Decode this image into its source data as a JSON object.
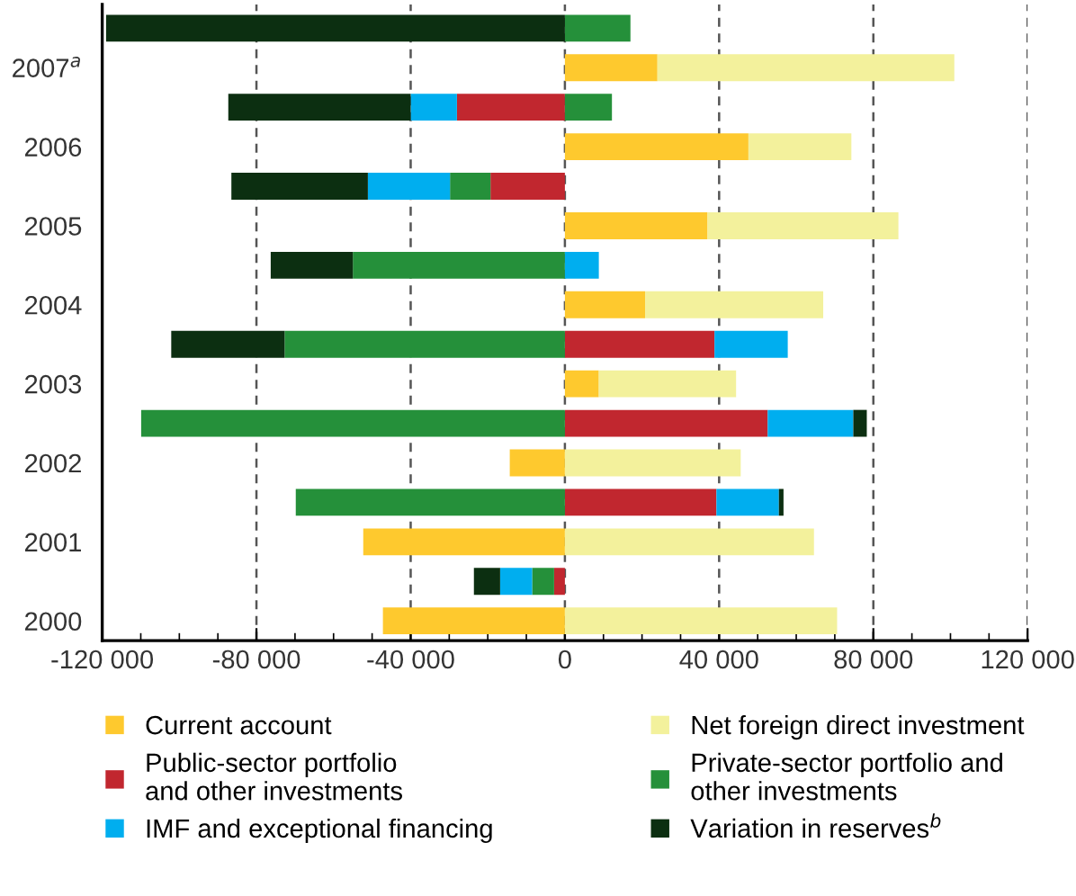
{
  "chart_data": {
    "type": "bar",
    "orientation": "horizontal",
    "stacked": true,
    "categories": [
      null,
      "2007$^{a}$",
      null,
      "2006",
      null,
      "2005",
      null,
      "2004",
      null,
      "2003",
      null,
      "2002",
      null,
      "2001",
      null,
      "2000"
    ],
    "series": [
      {
        "name": "Current account",
        "color": "#fec92e",
        "values": [
          null,
          24000,
          null,
          47600,
          null,
          37000,
          null,
          20800,
          null,
          8800,
          null,
          -14300,
          null,
          -52300,
          null,
          -47200
        ]
      },
      {
        "name": "Net foreign direct investment",
        "color": "#f3f19c",
        "values": [
          null,
          77000,
          null,
          26700,
          null,
          49500,
          null,
          46200,
          null,
          35600,
          null,
          45600,
          null,
          64600,
          null,
          70600
        ]
      },
      {
        "name": "Public-sector portfolio\nand other investments",
        "color": "#c1272f",
        "values": [
          null,
          null,
          -28000,
          null,
          -19300,
          null,
          null,
          null,
          38800,
          null,
          52600,
          null,
          39300,
          null,
          -2800,
          null
        ]
      },
      {
        "name": "Private-sector portfolio and\nother investments",
        "color": "#25903a",
        "values": [
          17000,
          null,
          12200,
          null,
          -10500,
          null,
          -55000,
          null,
          -72700,
          null,
          -109900,
          null,
          -69800,
          null,
          -5700,
          null
        ]
      },
      {
        "name": "IMF and exceptional financing",
        "color": "#00aeef",
        "values": [
          null,
          null,
          -12000,
          null,
          -21300,
          null,
          8800,
          null,
          19000,
          null,
          22200,
          null,
          16200,
          null,
          -8300,
          null
        ]
      },
      {
        "name": "Variation in reserves$^{b}$",
        "color": "#0c2f11",
        "values": [
          -119000,
          null,
          -47300,
          null,
          -35400,
          null,
          -21300,
          null,
          -29400,
          null,
          3500,
          null,
          1200,
          null,
          -6800,
          null
        ]
      }
    ],
    "xlim": [
      -120000,
      120000
    ],
    "xticks": [
      {
        "value": -120000,
        "label": "-120 000"
      },
      {
        "value": -80000,
        "label": "-80 000"
      },
      {
        "value": -40000,
        "label": "-40 000"
      },
      0,
      {
        "value": 40000,
        "label": "40 000"
      },
      {
        "value": 80000,
        "label": "80 000"
      },
      {
        "value": 120000,
        "label": "120 000"
      },
      {
        "value": -110000,
        "label": null
      },
      {
        "value": -100000,
        "label": null
      },
      {
        "value": -90000,
        "label": null
      },
      {
        "value": -70000,
        "label": null
      },
      {
        "value": -60000,
        "label": null
      },
      {
        "value": -50000,
        "label": null
      },
      {
        "value": -30000,
        "label": null
      },
      {
        "value": -20000,
        "label": null
      },
      {
        "value": -10000,
        "label": null
      },
      {
        "value": 10000,
        "label": null
      },
      {
        "value": 20000,
        "label": null
      },
      {
        "value": 30000,
        "label": null
      },
      {
        "value": 50000,
        "label": null
      },
      {
        "value": 60000,
        "label": null
      },
      {
        "value": 70000,
        "label": null
      },
      {
        "value": 90000,
        "label": null
      },
      {
        "value": 100000,
        "label": null
      },
      {
        "value": 110000,
        "label": null
      }
    ],
    "grid": "x",
    "legend": "bottom"
  }
}
